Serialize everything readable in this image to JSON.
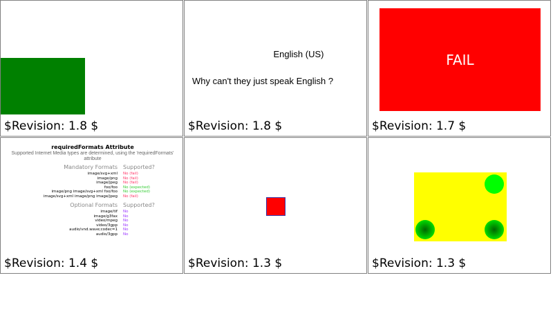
{
  "cells": [
    {
      "revision": "$Revision: 1.8 $"
    },
    {
      "revision": "$Revision: 1.8 $",
      "language": "English (US)",
      "message": "Why can't they just speak English ?"
    },
    {
      "revision": "$Revision: 1.7 $",
      "fail_text": "FAIL"
    },
    {
      "revision": "$Revision: 1.4 $",
      "title": "requiredFormats Attribute",
      "subtitle": "Supported Internet Media types are determined, using the 'requiredFormats' attribute",
      "mandatory_header": "Mandatory Formats",
      "supported_header": "Supported?",
      "mandatory": [
        {
          "format": "image/svg+xml",
          "result": "No (fail)"
        },
        {
          "format": "image/png",
          "result": "No (fail)"
        },
        {
          "format": "image/jpeg",
          "result": "No (fail)"
        },
        {
          "format": "foo/foo",
          "result": "No (expected)"
        },
        {
          "format": "image/png image/svg+xml foo/foo",
          "result": "No (expected)"
        },
        {
          "format": "image/svg+xml image/png image/jpeg",
          "result": "No (fail)"
        }
      ],
      "optional_header": "Optional Formats",
      "supported_header2": "Supported?",
      "optional": [
        {
          "format": "image/tif",
          "result": "No"
        },
        {
          "format": "image/g3fax",
          "result": "No"
        },
        {
          "format": "video/mpeg",
          "result": "No"
        },
        {
          "format": "video/3gpp",
          "result": "No"
        },
        {
          "format": "audio/vnd.wave;codec=1",
          "result": "No"
        },
        {
          "format": "audio/3gpp",
          "result": "No"
        }
      ]
    },
    {
      "revision": "$Revision: 1.3 $"
    },
    {
      "revision": "$Revision: 1.3 $"
    }
  ],
  "colors": {
    "green": "#008000",
    "red": "#ff0000",
    "yellow": "#ffff00",
    "lime": "#00ff00",
    "fail": "#ff3366",
    "expected": "#33cc33",
    "optional": "#9933ff"
  }
}
